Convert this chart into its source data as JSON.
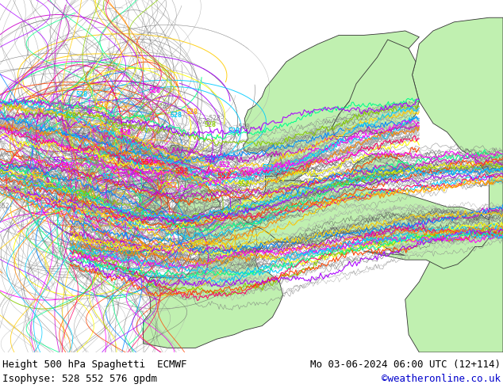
{
  "title_left": "Height 500 hPa Spaghetti  ECMWF",
  "title_right": "Mo 03-06-2024 06:00 UTC (12+114)",
  "subtitle_left": "Isophyse: 528 552 576 gpdm",
  "subtitle_right": "©weatheronline.co.uk",
  "subtitle_right_color": "#0000cc",
  "bg_color": "#d8d8d8",
  "land_color": "#c0f0b0",
  "text_color": "#000000",
  "font_size_title": 9,
  "font_size_subtitle": 9,
  "bottom_bar_color": "#ffffff",
  "map_xlim": [
    -30,
    42
  ],
  "map_ylim": [
    35,
    75
  ],
  "label_528_color": "#00aaff",
  "label_552_color_dark": "#888888",
  "label_552_bg": "none"
}
